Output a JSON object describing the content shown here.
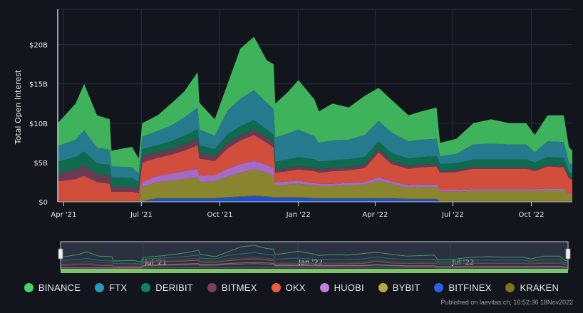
{
  "chart_data": {
    "type": "area",
    "stacked": true,
    "ylabel": "Total Open Interest",
    "xlabel": "",
    "ylim": [
      0,
      24.5
    ],
    "y_unit": "B USD",
    "y_ticks": [
      {
        "v": 0,
        "label": "$0"
      },
      {
        "v": 5,
        "label": "$5B"
      },
      {
        "v": 10,
        "label": "$10B"
      },
      {
        "v": 15,
        "label": "$15B"
      },
      {
        "v": 20,
        "label": "$20B"
      }
    ],
    "x_range": [
      "2021-03-25",
      "2022-11-18"
    ],
    "x_ticks": [
      {
        "date": "2021-04-01",
        "label": "Apr '21"
      },
      {
        "date": "2021-07-01",
        "label": "Jul '21"
      },
      {
        "date": "2021-10-01",
        "label": "Oct '21"
      },
      {
        "date": "2022-01-01",
        "label": "Jan '22"
      },
      {
        "date": "2022-04-01",
        "label": "Apr '22"
      },
      {
        "date": "2022-07-01",
        "label": "Jul '22"
      },
      {
        "date": "2022-10-01",
        "label": "Oct '22"
      }
    ],
    "navigator_ticks": [
      {
        "date": "2021-07-01",
        "label": "Jul '21"
      },
      {
        "date": "2022-01-01",
        "label": "Jan '22"
      },
      {
        "date": "2022-07-01",
        "label": "Jul '22"
      }
    ],
    "grid": true,
    "legend_position": "bottom",
    "series": [
      {
        "name": "BITFINEX",
        "color": "#1d4fd6",
        "legend_color": "#2563eb"
      },
      {
        "name": "KRAKEN",
        "color": "#6b6a14",
        "legend_color": "#7a7616"
      },
      {
        "name": "BYBIT",
        "color": "#8a8630",
        "legend_color": "#b3ab40"
      },
      {
        "name": "HUOBI",
        "color": "#a56bc4",
        "legend_color": "#c77ddf"
      },
      {
        "name": "OKX",
        "color": "#d24e3c",
        "legend_color": "#f05a48"
      },
      {
        "name": "BITMEX",
        "color": "#6a3a55",
        "legend_color": "#7b3f62"
      },
      {
        "name": "DERIBIT",
        "color": "#0f6a4e",
        "legend_color": "#12805c"
      },
      {
        "name": "FTX",
        "color": "#267a8e",
        "legend_color": "#2a97b4"
      },
      {
        "name": "BINANCE",
        "color": "#3fb35c",
        "legend_color": "#47d46c"
      }
    ],
    "legend_order": [
      "BINANCE",
      "FTX",
      "DERIBIT",
      "BITMEX",
      "OKX",
      "HUOBI",
      "BYBIT",
      "BITFINEX",
      "KRAKEN"
    ],
    "x": [
      "2021-03-25",
      "2021-04-15",
      "2021-04-25",
      "2021-05-10",
      "2021-05-25",
      "2021-05-27",
      "2021-06-20",
      "2021-06-28",
      "2021-07-02",
      "2021-07-20",
      "2021-08-05",
      "2021-08-20",
      "2021-09-05",
      "2021-09-07",
      "2021-09-25",
      "2021-10-10",
      "2021-10-25",
      "2021-11-10",
      "2021-11-25",
      "2021-12-03",
      "2021-12-05",
      "2021-12-20",
      "2022-01-01",
      "2022-01-20",
      "2022-01-25",
      "2022-02-10",
      "2022-03-01",
      "2022-03-20",
      "2022-04-05",
      "2022-04-20",
      "2022-05-10",
      "2022-05-25",
      "2022-06-12",
      "2022-06-16",
      "2022-07-05",
      "2022-07-25",
      "2022-08-15",
      "2022-09-05",
      "2022-09-25",
      "2022-10-05",
      "2022-10-20",
      "2022-11-08",
      "2022-11-14",
      "2022-11-18"
    ],
    "values": {
      "BITFINEX": [
        0,
        0,
        0,
        0,
        0,
        0,
        0,
        0,
        0,
        0.4,
        0.4,
        0.4,
        0.4,
        0.4,
        0.4,
        0.5,
        0.6,
        0.7,
        0.6,
        0.5,
        0.5,
        0.5,
        0.5,
        0.4,
        0.4,
        0.4,
        0.4,
        0.4,
        0.4,
        0.4,
        0.3,
        0.3,
        0.3,
        0,
        0,
        0,
        0,
        0,
        0,
        0,
        0,
        0,
        0,
        0
      ],
      "KRAKEN": [
        0.1,
        0.1,
        0.1,
        0.1,
        0.1,
        0.1,
        0.1,
        0.1,
        0.1,
        0.1,
        0.1,
        0.1,
        0.1,
        0.1,
        0.1,
        0.1,
        0.1,
        0.1,
        0.1,
        0.1,
        0.1,
        0.1,
        0.1,
        0.1,
        0.1,
        0.1,
        0.1,
        0.1,
        0.1,
        0.1,
        0.1,
        0.1,
        0.1,
        0.1,
        0.1,
        0.1,
        0.1,
        0.1,
        0.1,
        0.1,
        0.1,
        0.1,
        0.1,
        0.1
      ],
      "BYBIT": [
        0,
        0,
        0,
        0,
        0,
        0,
        0,
        0,
        1.8,
        2,
        2.2,
        2.4,
        2.6,
        2,
        2.1,
        2.6,
        3,
        3.3,
        3,
        2.7,
        1.5,
        1.6,
        1.7,
        1.6,
        1.5,
        1.5,
        1.6,
        1.7,
        2.2,
        1.8,
        1.4,
        1.5,
        1.5,
        1.2,
        1.2,
        1.3,
        1.3,
        1.3,
        1.3,
        1.3,
        1.4,
        1.4,
        0.8,
        0.8
      ],
      "HUOBI": [
        0,
        0,
        0,
        0,
        0,
        0,
        0,
        0,
        0.6,
        0.8,
        0.9,
        1,
        1.1,
        0.8,
        0.8,
        1,
        1.1,
        1.1,
        1,
        1,
        0.4,
        0.4,
        0.4,
        0.3,
        0.3,
        0.3,
        0.3,
        0.3,
        0.4,
        0.3,
        0.3,
        0.3,
        0.3,
        0.2,
        0.2,
        0.2,
        0.2,
        0.2,
        0.2,
        0.2,
        0.2,
        0.2,
        0.1,
        0.1
      ],
      "OKX": [
        2.5,
        2.8,
        3.2,
        2.4,
        2.2,
        1.2,
        1.2,
        1,
        2.5,
        2.3,
        2.4,
        2.6,
        3,
        2.2,
        1.8,
        2.6,
        3,
        3.3,
        2.8,
        2.6,
        1.2,
        1.3,
        1.4,
        1.5,
        1.4,
        1.6,
        1.6,
        1.8,
        3.2,
        2.2,
        2.1,
        2.2,
        2.3,
        2.2,
        2.3,
        2.6,
        2.6,
        2.6,
        2.6,
        2.3,
        2.8,
        2.7,
        2,
        1.8
      ],
      "BITMEX": [
        1,
        1.2,
        1.3,
        1,
        1,
        0.6,
        0.6,
        0.5,
        0.8,
        0.7,
        0.7,
        0.8,
        0.8,
        0.7,
        0.6,
        0.7,
        0.6,
        0.7,
        0.6,
        0.6,
        0.4,
        0.4,
        0.4,
        0.4,
        0.4,
        0.4,
        0.4,
        0.4,
        0.4,
        0.4,
        0.3,
        0.3,
        0.3,
        0.2,
        0.2,
        0.2,
        0.2,
        0.2,
        0.2,
        0.2,
        0.2,
        0.2,
        0.2,
        0.2
      ],
      "DERIBIT": [
        1.5,
        1.6,
        1.8,
        1.4,
        1.4,
        1.2,
        1.1,
        0.9,
        0.9,
        0.9,
        1,
        1.1,
        1.2,
        1,
        0.9,
        1.1,
        1.2,
        1.2,
        1.1,
        1,
        1,
        1.1,
        1.2,
        1.1,
        1,
        1,
        1,
        1,
        1,
        1,
        1,
        1,
        1,
        0.9,
        0.9,
        1,
        1,
        1,
        1,
        0.9,
        1,
        1,
        0.6,
        0.5
      ],
      "FTX": [
        2,
        2.2,
        2.7,
        2,
        1.9,
        1.4,
        1.4,
        1.1,
        1.6,
        1.8,
        2,
        2.3,
        2.8,
        2,
        1.7,
        3,
        3.5,
        3.8,
        3.4,
        3.3,
        3.1,
        3.3,
        3.5,
        2.9,
        2.4,
        2.5,
        2.5,
        2.8,
        2.6,
        2.6,
        2.2,
        2.2,
        2.2,
        1,
        1.2,
        1.9,
        2,
        1.9,
        1.9,
        1.3,
        2,
        2,
        1.2,
        1.2
      ],
      "BINANCE": [
        2.9,
        4.6,
        5.9,
        4.1,
        3.9,
        2,
        2.6,
        1.9,
        1.7,
        2,
        2.8,
        3.3,
        4.5,
        3.4,
        2.1,
        3.4,
        6.4,
        6.8,
        5.4,
        5.7,
        4.3,
        5.3,
        6.3,
        4.7,
        4,
        4.7,
        4.1,
        5,
        4.2,
        4.2,
        3.3,
        3.6,
        4,
        1.7,
        1.9,
        2.7,
        3.1,
        2.7,
        2.7,
        2.2,
        3.3,
        3.4,
        2,
        1.8
      ]
    }
  },
  "footer": {
    "credit": "Published on laevitas.ch, 16:52:36 18Nov2022"
  }
}
